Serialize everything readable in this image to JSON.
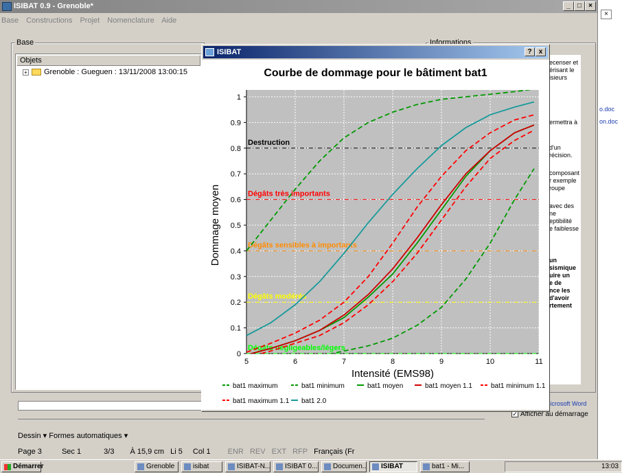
{
  "app": {
    "title": "ISIBAT 0.9 - Grenoble*",
    "menu": [
      "Base",
      "Constructions",
      "Projet",
      "Nomenclature",
      "Aide"
    ],
    "base_group_label": "Base",
    "info_group_label": "Informations",
    "objects_header": "Objets",
    "tree_item": "Grenoble : Gueguen : 13/11/2008 13:00:15",
    "info_fragments": [
      "ecenser et",
      "érisant le",
      "isieurs",
      "ermettra à",
      "d'un",
      "récision.",
      "composant",
      "r exemple",
      "roupe",
      "avec des",
      "ne",
      "eptibilité",
      "e faiblesse",
      "un",
      "sismique",
      "uire un",
      "e de",
      "nce les",
      "d'avoir",
      "rtement"
    ]
  },
  "dialog": {
    "title": "ISIBAT",
    "help_btn": "?",
    "close_btn": "x"
  },
  "chart_data": {
    "type": "line",
    "title": "Courbe de dommage pour le bâtiment bat1",
    "xlabel": "Intensité (EMS98)",
    "ylabel": "Dommage moyen",
    "xlim": [
      5,
      11
    ],
    "ylim": [
      0,
      1
    ],
    "xticks": [
      "5",
      "6",
      "7",
      "8",
      "9",
      "10",
      "11"
    ],
    "yticks": [
      "0",
      "0.1",
      "0.2",
      "0.3",
      "0.4",
      "0.5",
      "0.6",
      "0.7",
      "0.8",
      "0.9",
      "1"
    ],
    "grid": true,
    "thresholds": [
      {
        "label": "Destruction",
        "y": 0.8,
        "color": "#000000"
      },
      {
        "label": "Dégâts très importants",
        "y": 0.6,
        "color": "#ff0000"
      },
      {
        "label": "Dégâts sensibles à importants",
        "y": 0.4,
        "color": "#ff8c00"
      },
      {
        "label": "Dégâts modérés",
        "y": 0.2,
        "color": "#ffff00"
      },
      {
        "label": "Dégâts négligeables/légers",
        "y": 0.0,
        "color": "#00ff00"
      }
    ],
    "x": [
      5,
      5.5,
      6,
      6.5,
      7,
      7.5,
      8,
      8.5,
      9,
      9.5,
      10,
      10.5,
      10.9
    ],
    "series": [
      {
        "name": "bat1 maximum",
        "color": "#009900",
        "dash": true,
        "values": [
          0.4,
          0.52,
          0.64,
          0.75,
          0.84,
          0.9,
          0.94,
          0.97,
          0.99,
          1.0,
          1.01,
          1.02,
          1.03
        ]
      },
      {
        "name": "bat1 minimum",
        "color": "#009900",
        "dash": true,
        "values": [
          -0.04,
          -0.03,
          -0.02,
          -0.01,
          0.01,
          0.03,
          0.06,
          0.11,
          0.18,
          0.29,
          0.43,
          0.6,
          0.72
        ]
      },
      {
        "name": "bat1 moyen",
        "color": "#009900",
        "dash": false,
        "values": [
          -0.005,
          0.02,
          0.05,
          0.09,
          0.14,
          0.22,
          0.31,
          0.43,
          0.56,
          0.69,
          0.79,
          0.86,
          0.89
        ]
      },
      {
        "name": "bat1 moyen 1.1",
        "color": "#cc0000",
        "dash": false,
        "values": [
          -0.005,
          0.02,
          0.05,
          0.09,
          0.15,
          0.23,
          0.33,
          0.45,
          0.58,
          0.7,
          0.79,
          0.86,
          0.89
        ]
      },
      {
        "name": "bat1 minimum 1.1",
        "color": "#ff0000",
        "dash": true,
        "values": [
          -0.015,
          0.01,
          0.04,
          0.07,
          0.12,
          0.19,
          0.28,
          0.39,
          0.52,
          0.65,
          0.76,
          0.83,
          0.87
        ]
      },
      {
        "name": "bat1 maximum 1.1",
        "color": "#ff0000",
        "dash": true,
        "values": [
          0.005,
          0.04,
          0.08,
          0.13,
          0.2,
          0.3,
          0.43,
          0.57,
          0.69,
          0.79,
          0.86,
          0.91,
          0.93
        ]
      },
      {
        "name": "bat1 2.0",
        "color": "#189a9a",
        "dash": false,
        "values": [
          0.07,
          0.12,
          0.19,
          0.28,
          0.39,
          0.51,
          0.62,
          0.72,
          0.81,
          0.88,
          0.93,
          0.96,
          0.98
        ]
      }
    ]
  },
  "word": {
    "draw_toolbar": "Dessin ▾   Formes automatiques ▾",
    "status": [
      "Page 3",
      "Sec 1",
      "3/3",
      "À 15,9 cm",
      "Li 5",
      "Col 1",
      "ENR",
      "REV",
      "EXT",
      "RFP",
      "Français (Fr"
    ],
    "task_pane_link": "Microsoft Word",
    "show_startup": "Afficher au démarrage"
  },
  "taskbar": {
    "start": "Démarrer",
    "tasks": [
      "Grenoble",
      "isibat",
      "ISIBAT-N...",
      "ISIBAT 0....",
      "Documen...",
      "ISIBAT",
      "bat1 - Mi..."
    ],
    "clock": "13:03"
  }
}
